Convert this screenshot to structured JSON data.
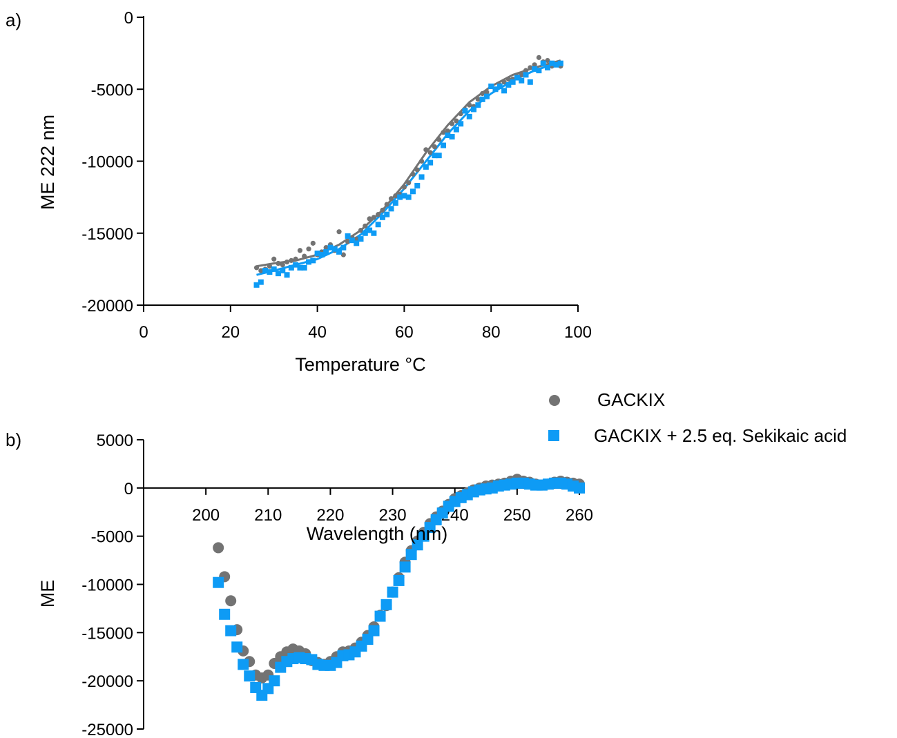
{
  "colors": {
    "gackix": "#737373",
    "sekikaic": "#0E9BF5",
    "axis": "#000000"
  },
  "legend": {
    "items": [
      {
        "label": "GACKIX",
        "marker": "circle",
        "color": "#737373"
      },
      {
        "label": "GACKIX + 2.5 eq. Sekikaic acid",
        "marker": "square",
        "color": "#0E9BF5"
      }
    ]
  },
  "chart_data": [
    {
      "panel_label": "a)",
      "type": "scatter",
      "xlabel": "Temperature °C",
      "ylabel": "ME 222 nm",
      "xlim": [
        0,
        100
      ],
      "ylim": [
        -20000,
        0
      ],
      "xticks": [
        0,
        20,
        40,
        60,
        80,
        100
      ],
      "yticks": [
        0,
        -5000,
        -10000,
        -15000,
        -20000
      ],
      "series": [
        {
          "name": "GACKIX",
          "marker": "circle",
          "x": [
            26,
            27,
            28,
            29,
            30,
            31,
            32,
            33,
            34,
            35,
            36,
            37,
            38,
            39,
            40,
            41,
            42,
            43,
            44,
            45,
            46,
            47,
            48,
            49,
            50,
            51,
            52,
            53,
            54,
            55,
            56,
            57,
            58,
            59,
            60,
            61,
            62,
            63,
            64,
            65,
            66,
            67,
            68,
            69,
            70,
            71,
            72,
            73,
            74,
            75,
            76,
            77,
            78,
            79,
            80,
            81,
            82,
            83,
            84,
            85,
            86,
            87,
            88,
            89,
            90,
            91,
            92,
            93,
            94,
            95,
            96
          ],
          "y": [
            -17400,
            -17600,
            -17500,
            -17300,
            -16800,
            -17100,
            -17200,
            -17000,
            -16900,
            -16800,
            -16200,
            -16600,
            -16100,
            -15700,
            -16500,
            -16300,
            -16000,
            -15800,
            -16200,
            -14900,
            -16500,
            -15600,
            -15300,
            -15400,
            -14800,
            -14500,
            -14000,
            -13900,
            -13700,
            -13400,
            -13000,
            -12600,
            -12400,
            -12300,
            -11800,
            -11500,
            -10900,
            -10600,
            -10000,
            -9200,
            -9400,
            -9000,
            -8500,
            -8000,
            -7900,
            -7400,
            -7200,
            -6700,
            -6400,
            -6100,
            -6200,
            -5700,
            -5300,
            -5200,
            -4800,
            -5000,
            -4700,
            -4500,
            -4300,
            -4300,
            -4100,
            -4000,
            -3700,
            -3500,
            -3300,
            -2800,
            -3100,
            -3000,
            -3400,
            -3300,
            -3400
          ]
        },
        {
          "name": "GACKIX + 2.5 eq. Sekikaic acid",
          "marker": "square",
          "x": [
            26,
            27,
            28,
            29,
            30,
            31,
            32,
            33,
            34,
            35,
            36,
            37,
            38,
            39,
            40,
            41,
            42,
            43,
            44,
            45,
            46,
            47,
            48,
            49,
            50,
            51,
            52,
            53,
            54,
            55,
            56,
            57,
            58,
            59,
            60,
            61,
            62,
            63,
            64,
            65,
            66,
            67,
            68,
            69,
            70,
            71,
            72,
            73,
            74,
            75,
            76,
            77,
            78,
            79,
            80,
            81,
            82,
            83,
            84,
            85,
            86,
            87,
            88,
            89,
            90,
            91,
            92,
            93,
            94,
            95,
            96
          ],
          "y": [
            -18600,
            -18400,
            -17600,
            -17700,
            -17500,
            -17800,
            -17600,
            -17900,
            -17400,
            -17200,
            -17400,
            -17400,
            -17000,
            -16900,
            -16400,
            -16500,
            -16300,
            -16000,
            -16100,
            -16300,
            -16000,
            -15200,
            -15500,
            -15700,
            -15400,
            -15000,
            -14800,
            -15000,
            -14400,
            -13900,
            -13700,
            -13300,
            -12900,
            -12500,
            -12400,
            -12500,
            -12100,
            -11700,
            -11100,
            -10400,
            -10100,
            -9600,
            -9600,
            -8900,
            -8200,
            -8300,
            -7800,
            -7400,
            -6500,
            -6900,
            -6400,
            -6100,
            -5700,
            -5500,
            -4800,
            -5000,
            -4800,
            -5100,
            -4700,
            -4500,
            -4200,
            -4400,
            -4000,
            -4500,
            -3600,
            -3700,
            -3200,
            -3500,
            -3200,
            -3300,
            -3200
          ]
        }
      ],
      "fits": [
        {
          "name": "GACKIX",
          "x": [
            26,
            30,
            35,
            40,
            45,
            50,
            55,
            60,
            65,
            70,
            75,
            80,
            85,
            90,
            96
          ],
          "y": [
            -17300,
            -17100,
            -16900,
            -16500,
            -15800,
            -14800,
            -13400,
            -11600,
            -9400,
            -7500,
            -5900,
            -4800,
            -4000,
            -3500,
            -3000
          ]
        },
        {
          "name": "GACKIX + 2.5 eq. Sekikaic acid",
          "x": [
            26,
            30,
            35,
            40,
            45,
            50,
            55,
            60,
            65,
            70,
            75,
            80,
            85,
            90,
            96
          ],
          "y": [
            -17900,
            -17600,
            -17200,
            -16800,
            -16100,
            -15100,
            -13600,
            -11900,
            -10000,
            -8100,
            -6500,
            -5300,
            -4400,
            -3700,
            -3100
          ]
        }
      ]
    },
    {
      "panel_label": "b)",
      "type": "scatter",
      "xlabel": "Wavelength (nm)",
      "ylabel": "ME",
      "xlim": [
        190,
        260
      ],
      "ylim": [
        -25000,
        5000
      ],
      "xticks": [
        200,
        210,
        220,
        230,
        240,
        250,
        260
      ],
      "yticks": [
        5000,
        0,
        -5000,
        -10000,
        -15000,
        -20000,
        -25000
      ],
      "series": [
        {
          "name": "GACKIX",
          "marker": "circle",
          "x": [
            202,
            203,
            204,
            205,
            206,
            207,
            208,
            209,
            210,
            211,
            212,
            213,
            214,
            215,
            216,
            217,
            218,
            219,
            220,
            221,
            222,
            223,
            224,
            225,
            226,
            227,
            228,
            229,
            230,
            231,
            232,
            233,
            234,
            235,
            236,
            237,
            238,
            239,
            240,
            241,
            242,
            243,
            244,
            245,
            246,
            247,
            248,
            249,
            250,
            251,
            252,
            253,
            254,
            255,
            256,
            257,
            258,
            259,
            260
          ],
          "y": [
            -6200,
            -9200,
            -11700,
            -14700,
            -16900,
            -18000,
            -19400,
            -19700,
            -19400,
            -18200,
            -17500,
            -17000,
            -16700,
            -16900,
            -17200,
            -17900,
            -18100,
            -18300,
            -18000,
            -17500,
            -17000,
            -16900,
            -16600,
            -16000,
            -15300,
            -14400,
            -13200,
            -12200,
            -10800,
            -9300,
            -7700,
            -6500,
            -5500,
            -4600,
            -3700,
            -3000,
            -2400,
            -1700,
            -1100,
            -800,
            -500,
            -200,
            0,
            200,
            300,
            400,
            500,
            700,
            900,
            700,
            600,
            400,
            300,
            400,
            600,
            700,
            600,
            500,
            400
          ]
        },
        {
          "name": "GACKIX + 2.5 eq. Sekikaic acid",
          "marker": "square",
          "x": [
            202,
            203,
            204,
            205,
            206,
            207,
            208,
            209,
            210,
            211,
            212,
            213,
            214,
            215,
            216,
            217,
            218,
            219,
            220,
            221,
            222,
            223,
            224,
            225,
            226,
            227,
            228,
            229,
            230,
            231,
            232,
            233,
            234,
            235,
            236,
            237,
            238,
            239,
            240,
            241,
            242,
            243,
            244,
            245,
            246,
            247,
            248,
            249,
            250,
            251,
            252,
            253,
            254,
            255,
            256,
            257,
            258,
            259,
            260
          ],
          "y": [
            -9800,
            -13100,
            -14800,
            -16500,
            -18300,
            -19500,
            -20700,
            -21500,
            -20800,
            -20000,
            -18600,
            -18000,
            -17700,
            -17600,
            -17700,
            -17800,
            -18300,
            -18400,
            -18400,
            -18100,
            -17400,
            -17300,
            -17000,
            -16400,
            -15700,
            -14800,
            -13300,
            -12100,
            -10800,
            -9600,
            -8200,
            -6900,
            -5900,
            -5000,
            -4100,
            -3300,
            -2600,
            -1900,
            -1400,
            -1000,
            -700,
            -400,
            -200,
            -100,
            0,
            200,
            300,
            400,
            500,
            500,
            400,
            300,
            300,
            400,
            500,
            500,
            400,
            200,
            0
          ]
        }
      ]
    }
  ]
}
